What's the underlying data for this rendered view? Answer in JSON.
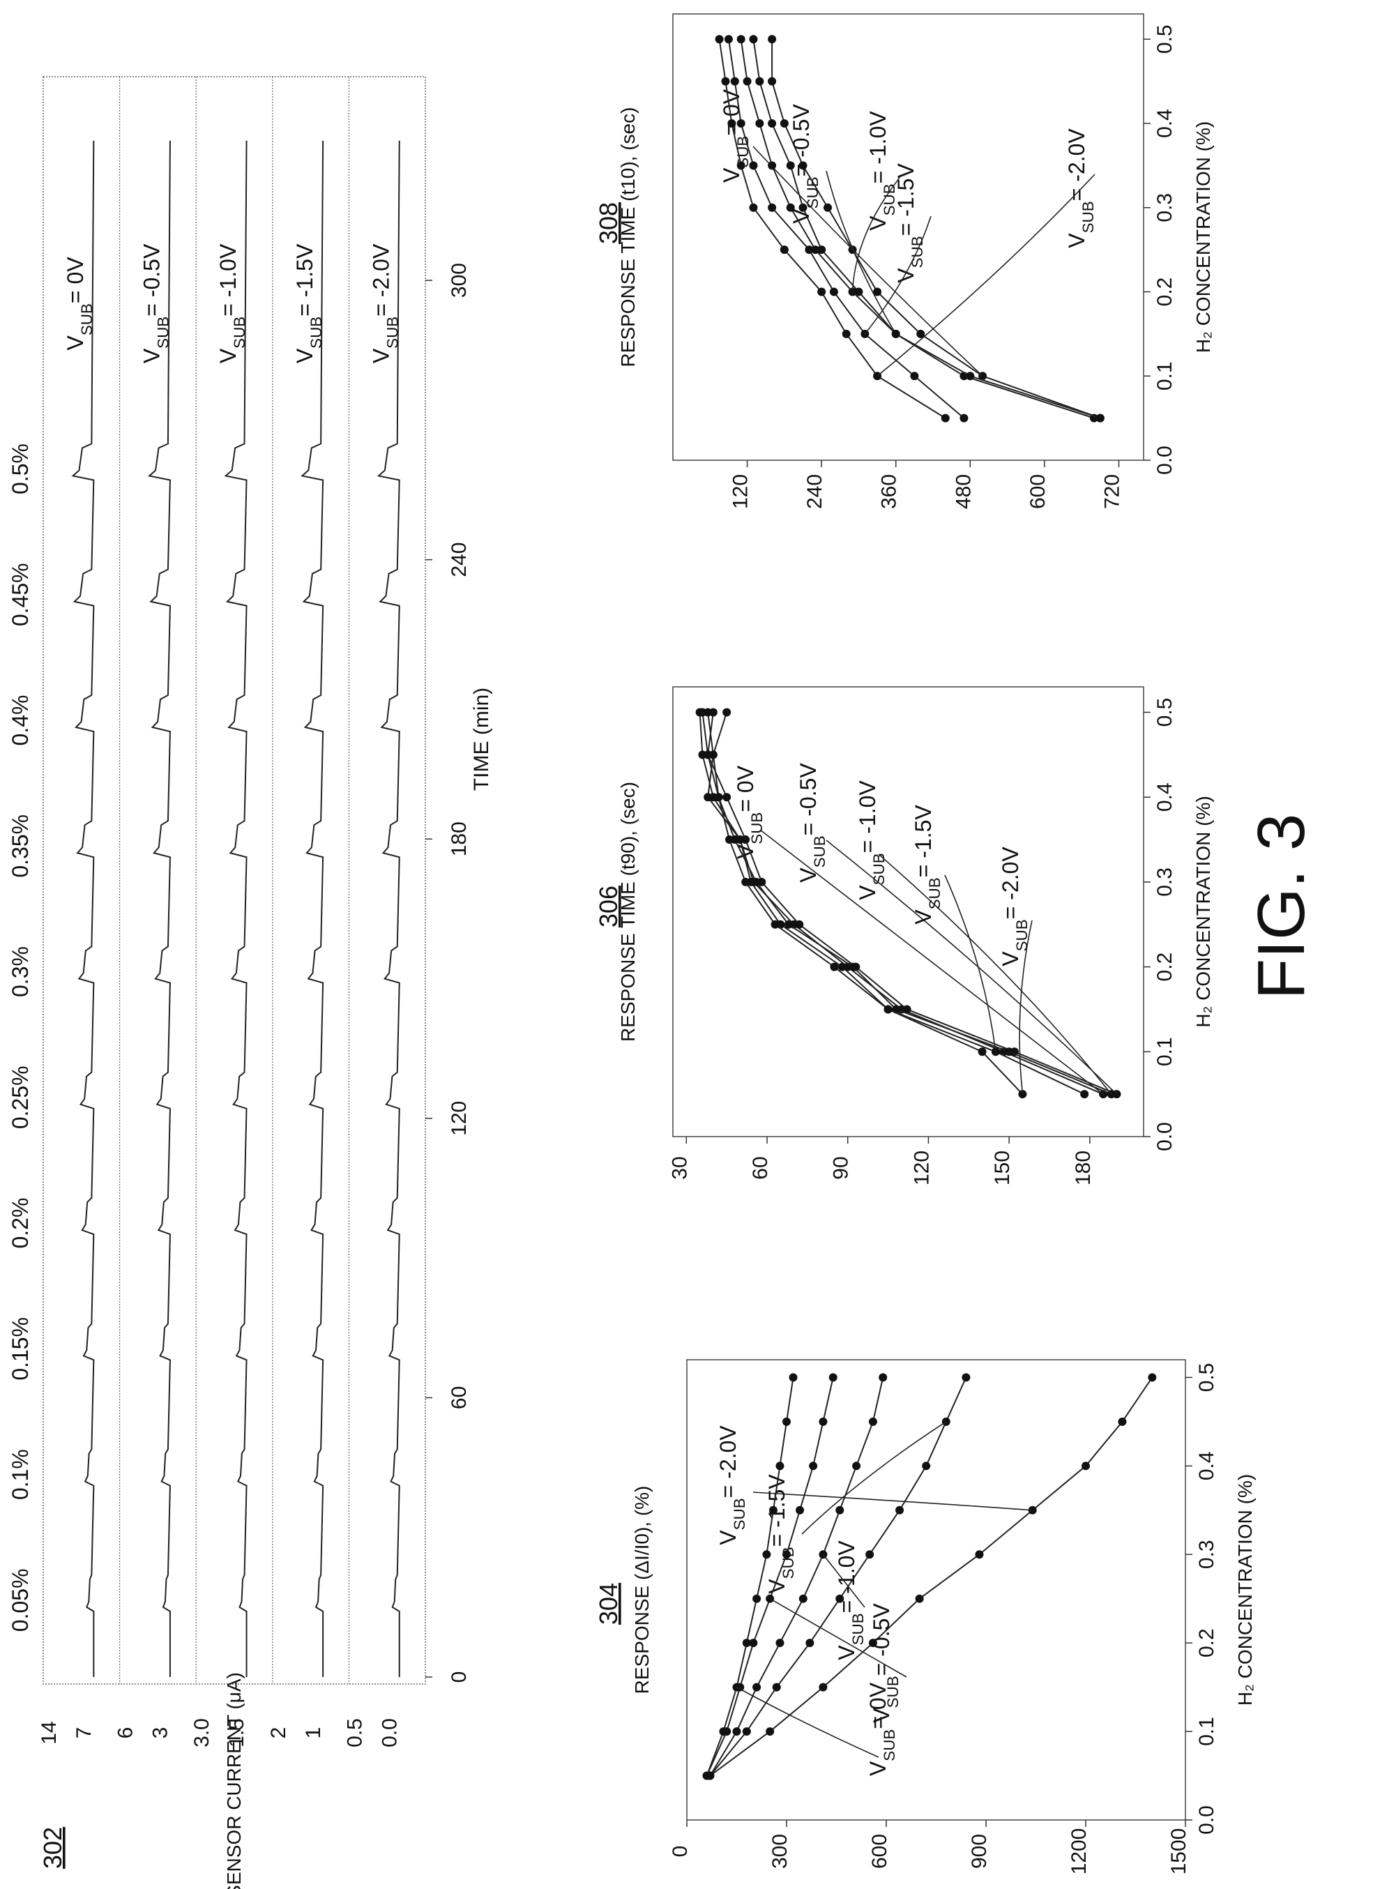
{
  "figure_label": "FIG. 3",
  "chart_data": [
    {
      "id": "302",
      "type": "line",
      "panel_number": "302",
      "xlabel": "TIME (min)",
      "ylabel": "SENSOR CURRENT (μA)",
      "xlim": [
        0,
        340
      ],
      "xticks": [
        "0",
        "60",
        "120",
        "180",
        "240",
        "300"
      ],
      "xtick_values": [
        0,
        60,
        120,
        180,
        240,
        300
      ],
      "concentration_labels": [
        "0.05%",
        "0.1%",
        "0.15%",
        "0.2%",
        "0.25%",
        "0.3%",
        "0.35%",
        "0.4%",
        "0.45%",
        "0.5%"
      ],
      "pulse_times": [
        15,
        42,
        69,
        96,
        123,
        150,
        177,
        204,
        231,
        258
      ],
      "strips": [
        {
          "name": "VSUB= 0V",
          "sub": "SUB",
          "tail": "= 0V",
          "yticks": [
            "14",
            "7"
          ]
        },
        {
          "name": "VSUB= -0.5V",
          "sub": "SUB",
          "tail": "= -0.5V",
          "yticks": [
            "6",
            "3"
          ]
        },
        {
          "name": "VSUB= -1.0V",
          "sub": "SUB",
          "tail": "= -1.0V",
          "yticks": [
            "3.0",
            "1.5"
          ]
        },
        {
          "name": "VSUB= -1.5V",
          "sub": "SUB",
          "tail": "= -1.5V",
          "yticks": [
            "2",
            "1"
          ]
        },
        {
          "name": "VSUB= -2.0V",
          "sub": "SUB",
          "tail": "= -2.0V",
          "yticks": [
            "0.5",
            "0.0"
          ]
        }
      ]
    },
    {
      "id": "304",
      "type": "line",
      "panel_number": "304",
      "xlabel": "H2 CONCENTRATION (%)",
      "ylabel": "RESPONSE (ΔI/I0), (%)",
      "xlim": [
        0,
        0.52
      ],
      "ylim": [
        0,
        1500
      ],
      "xticks": [
        "0.0",
        "0.1",
        "0.2",
        "0.3",
        "0.4",
        "0.5"
      ],
      "yticks": [
        "0",
        "300",
        "600",
        "900",
        "1200",
        "1500"
      ],
      "x": [
        0.05,
        0.1,
        0.15,
        0.2,
        0.25,
        0.3,
        0.35,
        0.4,
        0.45,
        0.5
      ],
      "series": [
        {
          "name": "VSUB= -2.0V",
          "tail": "= -2.0V",
          "values": [
            70,
            250,
            410,
            560,
            700,
            880,
            1040,
            1200,
            1310,
            1400
          ]
        },
        {
          "name": "VSUB= -1.5V",
          "tail": "= -1.5V",
          "values": [
            70,
            180,
            270,
            370,
            460,
            550,
            640,
            720,
            780,
            840
          ]
        },
        {
          "name": "VSUB= -1.0V",
          "tail": "= -1.0V",
          "values": [
            70,
            150,
            210,
            280,
            350,
            410,
            460,
            510,
            560,
            590
          ]
        },
        {
          "name": "VSUB= -0.5V",
          "tail": "= -0.5V",
          "values": [
            60,
            120,
            160,
            200,
            250,
            300,
            340,
            380,
            410,
            440
          ]
        },
        {
          "name": "VSUB= 0V",
          "tail": "= 0V",
          "values": [
            60,
            110,
            150,
            180,
            210,
            240,
            260,
            280,
            300,
            320
          ]
        }
      ]
    },
    {
      "id": "306",
      "type": "line",
      "panel_number": "306",
      "xlabel": "H2 CONCENTRATION (%)",
      "ylabel": "RESPONSE TIME (t90), (sec)",
      "xlim": [
        0,
        0.53
      ],
      "ylim": [
        25,
        200
      ],
      "xticks": [
        "0.0",
        "0.1",
        "0.2",
        "0.3",
        "0.4",
        "0.5"
      ],
      "yticks": [
        "30",
        "60",
        "90",
        "120",
        "150",
        "180"
      ],
      "x": [
        0.05,
        0.1,
        0.15,
        0.2,
        0.25,
        0.3,
        0.35,
        0.4,
        0.45,
        0.5
      ],
      "series": [
        {
          "name": "VSUB= 0V",
          "tail": "= 0V",
          "values": [
            185,
            148,
            110,
            90,
            70,
            55,
            50,
            38,
            40,
            38
          ]
        },
        {
          "name": "VSUB= -0.5V",
          "tail": "= -0.5V",
          "values": [
            190,
            152,
            112,
            93,
            72,
            58,
            52,
            45,
            38,
            36
          ]
        },
        {
          "name": "VSUB= -1.0V",
          "tail": "= -1.0V",
          "values": [
            188,
            150,
            108,
            92,
            68,
            56,
            48,
            42,
            40,
            45
          ]
        },
        {
          "name": "VSUB= -1.5V",
          "tail": "= -1.5V",
          "values": [
            178,
            145,
            105,
            88,
            65,
            54,
            50,
            40,
            36,
            35
          ]
        },
        {
          "name": "VSUB= -2.0V",
          "tail": "= -2.0V",
          "values": [
            155,
            140,
            105,
            85,
            63,
            52,
            46,
            42,
            38,
            40
          ]
        }
      ]
    },
    {
      "id": "308",
      "type": "line",
      "panel_number": "308",
      "xlabel": "H2 CONCENTRATION (%)",
      "ylabel": "RESPONSE TIME (t10), (sec)",
      "xlim": [
        0,
        0.53
      ],
      "ylim": [
        0,
        760
      ],
      "xticks": [
        "0.0",
        "0.1",
        "0.2",
        "0.3",
        "0.4",
        "0.5"
      ],
      "yticks": [
        "120",
        "240",
        "360",
        "480",
        "600",
        "720"
      ],
      "x": [
        0.05,
        0.1,
        0.15,
        0.2,
        0.25,
        0.3,
        0.35,
        0.4,
        0.45,
        0.5
      ],
      "series": [
        {
          "name": "VSUB= 0V",
          "tail": "= 0V",
          "values": [
            690,
            500,
            400,
            330,
            290,
            250,
            210,
            180,
            160,
            160
          ]
        },
        {
          "name": "VSUB= -0.5V",
          "tail": "= -0.5V",
          "values": [
            680,
            470,
            360,
            300,
            240,
            210,
            190,
            160,
            140,
            130
          ]
        },
        {
          "name": "VSUB= -1.0V",
          "tail": "= -1.0V",
          "values": [
            690,
            480,
            360,
            290,
            230,
            190,
            160,
            140,
            120,
            110
          ]
        },
        {
          "name": "VSUB= -1.5V",
          "tail": "= -1.5V",
          "values": [
            470,
            390,
            310,
            260,
            220,
            160,
            130,
            110,
            100,
            90
          ]
        },
        {
          "name": "VSUB= -2.0V",
          "tail": "= -2.0V",
          "values": [
            440,
            330,
            280,
            240,
            180,
            130,
            110,
            95,
            85,
            75
          ]
        }
      ]
    }
  ]
}
